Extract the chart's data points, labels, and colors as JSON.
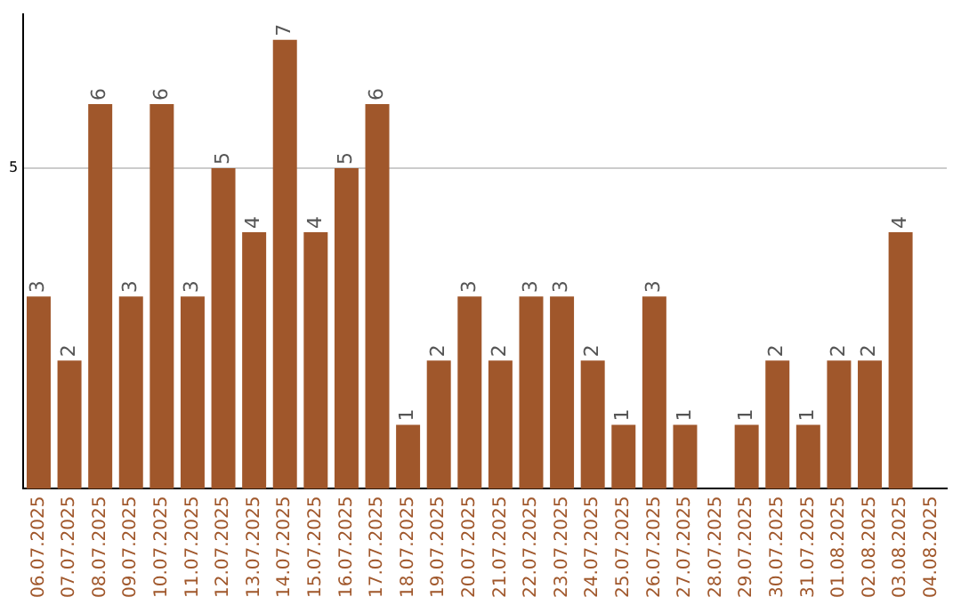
{
  "chart_data": {
    "type": "bar",
    "categories": [
      "06.07.2025",
      "07.07.2025",
      "08.07.2025",
      "09.07.2025",
      "10.07.2025",
      "11.07.2025",
      "12.07.2025",
      "13.07.2025",
      "14.07.2025",
      "15.07.2025",
      "16.07.2025",
      "17.07.2025",
      "18.07.2025",
      "19.07.2025",
      "20.07.2025",
      "21.07.2025",
      "22.07.2025",
      "23.07.2025",
      "24.07.2025",
      "25.07.2025",
      "26.07.2025",
      "27.07.2025",
      "28.07.2025",
      "29.07.2025",
      "30.07.2025",
      "31.07.2025",
      "01.08.2025",
      "02.08.2025",
      "03.08.2025",
      "04.08.2025"
    ],
    "values": [
      3,
      2,
      6,
      3,
      6,
      3,
      5,
      4,
      7,
      4,
      5,
      6,
      1,
      2,
      3,
      2,
      3,
      3,
      2,
      1,
      3,
      1,
      null,
      1,
      2,
      1,
      2,
      2,
      4,
      null
    ],
    "color": "#a0572b",
    "ylim": [
      0,
      7.4
    ],
    "yticks": [
      5
    ],
    "grid": "y",
    "data_labels": true,
    "legend": false
  }
}
